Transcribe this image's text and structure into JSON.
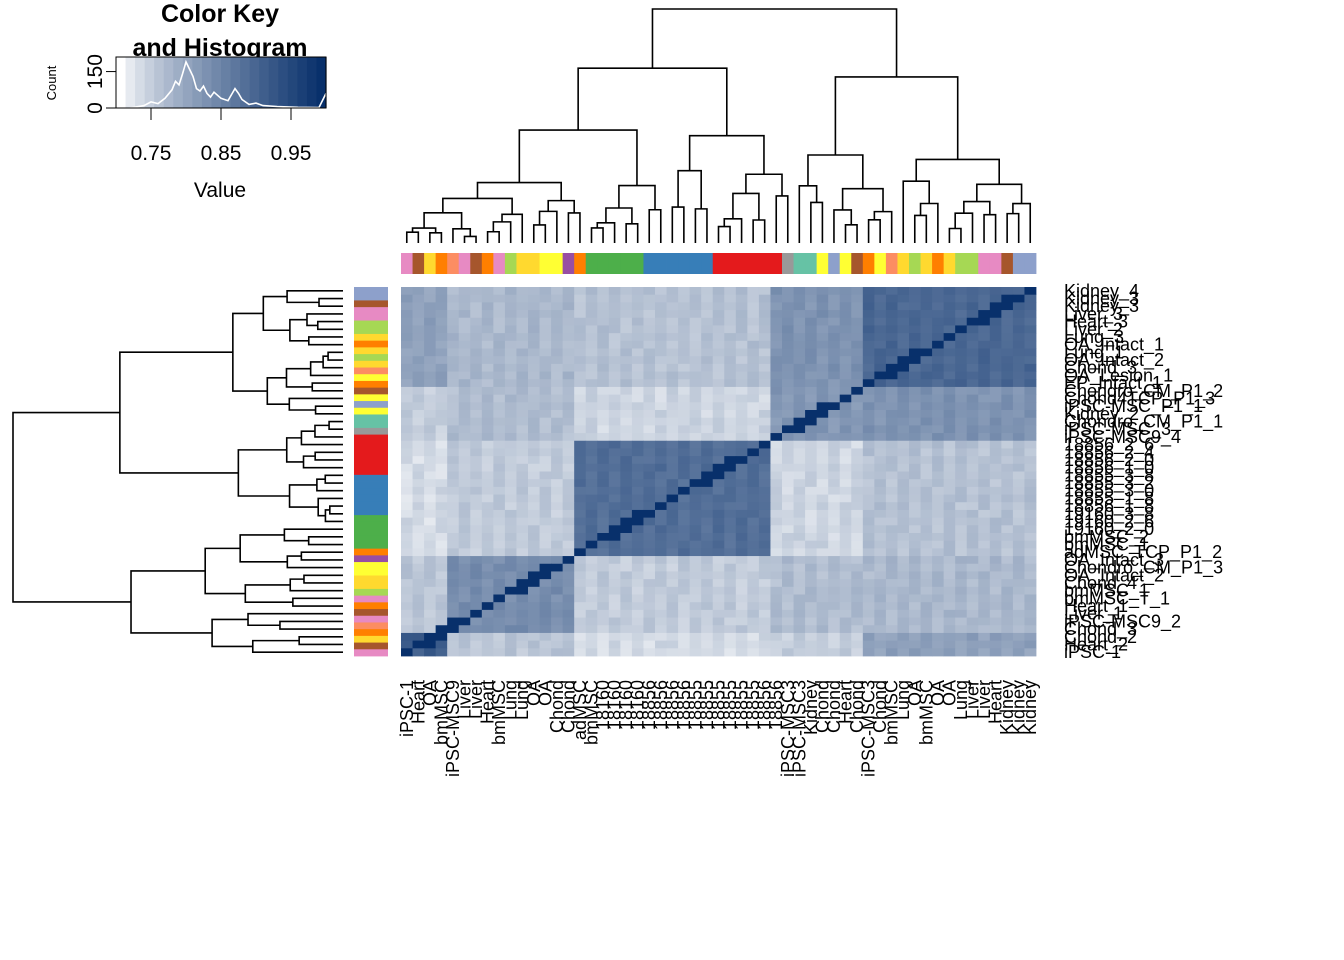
{
  "chart_data": {
    "type": "heatmap",
    "color_key": {
      "title_line1": "Color Key",
      "title_line2": "and Histogram",
      "xlabel": "Value",
      "ylabel": "Count",
      "x_ticks": [
        "0.75",
        "0.85",
        "0.95"
      ],
      "y_ticks": [
        "0",
        "150"
      ],
      "xlim": [
        0.7,
        1.0
      ],
      "ylim": [
        0,
        210
      ],
      "histogram_curve": [
        [
          0.72,
          0
        ],
        [
          0.74,
          10
        ],
        [
          0.75,
          25
        ],
        [
          0.76,
          18
        ],
        [
          0.77,
          40
        ],
        [
          0.78,
          75
        ],
        [
          0.785,
          110
        ],
        [
          0.79,
          95
        ],
        [
          0.795,
          140
        ],
        [
          0.8,
          190
        ],
        [
          0.805,
          160
        ],
        [
          0.81,
          130
        ],
        [
          0.815,
          80
        ],
        [
          0.82,
          70
        ],
        [
          0.825,
          90
        ],
        [
          0.83,
          60
        ],
        [
          0.835,
          45
        ],
        [
          0.84,
          65
        ],
        [
          0.85,
          40
        ],
        [
          0.86,
          30
        ],
        [
          0.865,
          55
        ],
        [
          0.87,
          80
        ],
        [
          0.875,
          60
        ],
        [
          0.88,
          35
        ],
        [
          0.89,
          15
        ],
        [
          0.9,
          20
        ],
        [
          0.91,
          10
        ],
        [
          0.93,
          6
        ],
        [
          0.96,
          3
        ],
        [
          0.99,
          2
        ],
        [
          1.0,
          60
        ]
      ]
    },
    "colors": {
      "low": "#ffffff",
      "high": "#08306b"
    },
    "row_labels": [
      "Kidney_4",
      "Kidney_3",
      "Kidney_3",
      "Liver_3",
      "Heart_3",
      "Liver_2",
      "Lung_3",
      "OA_Intact_1",
      "Lung_1",
      "OA_Intact_2",
      "Chond_3",
      "OA_Lesion_1",
      "EP_Intact_1",
      "Chondro_CM_P1_2",
      "Chond4TCP_P1_3",
      "iPSC-MSC_P1_1",
      "Kidney_2",
      "Chondro_CM_P1_1",
      "iPSC-MSC_3",
      "iPSC-MSC9_4",
      "18856_2_6",
      "18856_2_4",
      "18856_2_0",
      "18856_1_0",
      "18855_3_8",
      "18855_3_2",
      "18855_3_0",
      "18855_1_8",
      "18856_1_8",
      "19160_3_8",
      "19160_2_6",
      "19160_2_0",
      "bmMSC_2",
      "bmMSC_1",
      "adMSC_TCP_P1_2",
      "OA_Intact_3",
      "Chondro_CM_P1_3",
      "OA_Intact_2",
      "Chond_4",
      "bmMSC_1",
      "bmMSC_T_1",
      "Heart_1",
      "Liver_1",
      "iPSC-MSC9_2",
      "Chond_3",
      "Chond_2",
      "Heart_2",
      "iPSC-1"
    ],
    "col_labels": [
      "iPSC-1",
      "Heart",
      "OA",
      "bmMSC",
      "iPSC-MSC9",
      "Liver",
      "Liver",
      "Heart",
      "bmMSC",
      "Lung",
      "Lung",
      "OA",
      "OA",
      "Chond",
      "Chond",
      "adMSC",
      "bmMSC",
      "18160",
      "18160",
      "18160",
      "18160",
      "18856",
      "18856",
      "18856",
      "18856",
      "18855",
      "18855",
      "18855",
      "18855",
      "18855",
      "18855",
      "18856",
      "18856",
      "iPSC-MSC3",
      "iPSC-MSC3",
      "Kidney",
      "Chond",
      "Chond",
      "Heart",
      "Chond",
      "iPSC-MSC3",
      "Chond",
      "bmMSC",
      "Lung",
      "OA",
      "bmMSC",
      "OA",
      "OA",
      "Lung",
      "Liver",
      "Liver",
      "Heart",
      "Kidney",
      "Kidney",
      "Kidney"
    ],
    "col_side_colors": [
      "#e78ac3",
      "#a6562c",
      "#ffd92f",
      "#ff7f00",
      "#fc8d62",
      "#e78ac3",
      "#a6562c",
      "#ff7f00",
      "#e78ac3",
      "#a6d854",
      "#ffd92f",
      "#ffd92f",
      "#ffff33",
      "#ffff33",
      "#984ea3",
      "#ff7f00",
      "#4daf4a",
      "#4daf4a",
      "#4daf4a",
      "#4daf4a",
      "#4daf4a",
      "#377eb8",
      "#377eb8",
      "#377eb8",
      "#377eb8",
      "#377eb8",
      "#377eb8",
      "#e41a1c",
      "#e41a1c",
      "#e41a1c",
      "#e41a1c",
      "#e41a1c",
      "#e41a1c",
      "#999999",
      "#66c2a5",
      "#66c2a5",
      "#ffff33",
      "#8da0cb",
      "#ffff33",
      "#a6562c",
      "#ff7f00",
      "#ffff33",
      "#fc8d62",
      "#ffd92f",
      "#a6d854",
      "#ffd92f",
      "#ff7f00",
      "#ffd92f",
      "#a6d854",
      "#a6d854",
      "#e78ac3",
      "#e78ac3",
      "#a6562c",
      "#8da0cb",
      "#8da0cb"
    ]
  }
}
